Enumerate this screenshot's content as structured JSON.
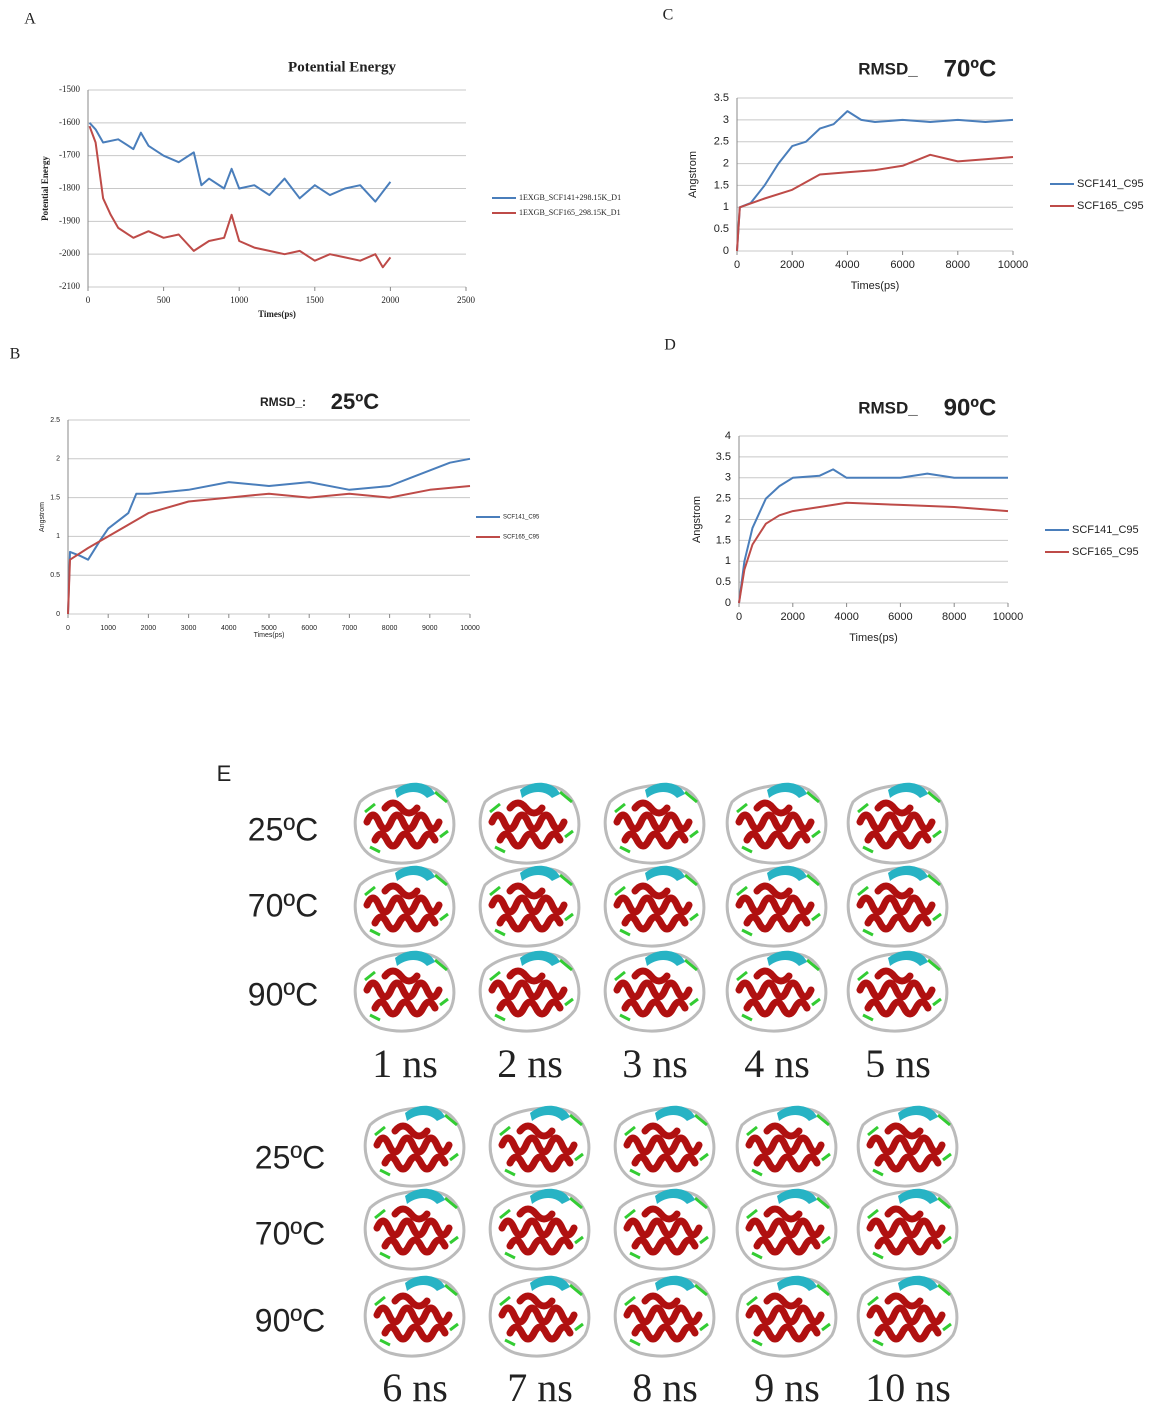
{
  "chart_data": [
    {
      "type": "line",
      "panel": "A",
      "title": "Potential Energy",
      "x_label": "Times(ps)",
      "y_label": "Potential Energy",
      "xlim": [
        0,
        2500
      ],
      "xticks": [
        0,
        500,
        1000,
        1500,
        2000,
        2500
      ],
      "ylim": [
        -2100,
        -1500
      ],
      "yticks": [
        -2100,
        -2000,
        -1900,
        -1800,
        -1700,
        -1600,
        -1500
      ],
      "grid": true,
      "series": [
        {
          "name": "1EXGB_SCF141+298.15K_D1",
          "color": "#4a7ebb",
          "x": [
            10,
            50,
            100,
            200,
            300,
            350,
            400,
            500,
            600,
            700,
            750,
            800,
            900,
            950,
            1000,
            1100,
            1200,
            1300,
            1400,
            1500,
            1600,
            1700,
            1800,
            1900,
            2000
          ],
          "values": [
            -1600,
            -1620,
            -1660,
            -1650,
            -1680,
            -1630,
            -1670,
            -1700,
            -1720,
            -1690,
            -1790,
            -1770,
            -1800,
            -1740,
            -1800,
            -1790,
            -1820,
            -1770,
            -1830,
            -1790,
            -1820,
            -1800,
            -1790,
            -1840,
            -1780
          ]
        },
        {
          "name": "1EXGB_SCF165_298.15K_D1",
          "color": "#be4b48",
          "x": [
            10,
            50,
            100,
            150,
            200,
            300,
            400,
            500,
            600,
            700,
            800,
            900,
            950,
            1000,
            1100,
            1200,
            1300,
            1400,
            1500,
            1600,
            1700,
            1800,
            1900,
            1950,
            2000
          ],
          "values": [
            -1610,
            -1660,
            -1830,
            -1880,
            -1920,
            -1950,
            -1930,
            -1950,
            -1940,
            -1990,
            -1960,
            -1950,
            -1880,
            -1960,
            -1980,
            -1990,
            -2000,
            -1990,
            -2020,
            -2000,
            -2010,
            -2020,
            -2000,
            -2040,
            -2010
          ]
        }
      ]
    },
    {
      "type": "line",
      "panel": "B",
      "title": "RMSD_:",
      "title_temp": "25ºC",
      "x_label": "Times(ps)",
      "y_label": "Angstrom",
      "xlim": [
        0,
        10000
      ],
      "xticks": [
        0,
        1000,
        2000,
        3000,
        4000,
        5000,
        6000,
        7000,
        8000,
        9000,
        10000
      ],
      "ylim": [
        0,
        2.5
      ],
      "yticks": [
        0,
        0.5,
        1,
        1.5,
        2,
        2.5
      ],
      "grid": true,
      "series": [
        {
          "name": "SCF141_C95",
          "color": "#4a7ebb",
          "x": [
            0,
            50,
            300,
            500,
            800,
            1000,
            1500,
            1700,
            2000,
            3000,
            4000,
            5000,
            6000,
            7000,
            8000,
            8500,
            9000,
            9500,
            10000
          ],
          "values": [
            0,
            0.8,
            0.75,
            0.7,
            0.95,
            1.1,
            1.3,
            1.55,
            1.55,
            1.6,
            1.7,
            1.65,
            1.7,
            1.6,
            1.65,
            1.75,
            1.85,
            1.95,
            2.0
          ]
        },
        {
          "name": "SCF165_C95",
          "color": "#be4b48",
          "x": [
            0,
            50,
            500,
            1000,
            1500,
            2000,
            3000,
            4000,
            5000,
            6000,
            7000,
            8000,
            9000,
            10000
          ],
          "values": [
            0,
            0.7,
            0.85,
            1.0,
            1.15,
            1.3,
            1.45,
            1.5,
            1.55,
            1.5,
            1.55,
            1.5,
            1.6,
            1.65
          ]
        }
      ]
    },
    {
      "type": "line",
      "panel": "C",
      "title": "RMSD_",
      "title_temp": "70ºC",
      "x_label": "Times(ps)",
      "y_label": "Angstrom",
      "xlim": [
        0,
        10000
      ],
      "xticks": [
        0,
        2000,
        4000,
        6000,
        8000,
        10000
      ],
      "ylim": [
        0,
        3.5
      ],
      "yticks": [
        0,
        0.5,
        1,
        1.5,
        2,
        2.5,
        3,
        3.5
      ],
      "grid": true,
      "series": [
        {
          "name": "SCF141_C95",
          "color": "#4a7ebb",
          "x": [
            0,
            100,
            500,
            1000,
            1500,
            2000,
            2500,
            3000,
            3500,
            4000,
            4500,
            5000,
            6000,
            7000,
            8000,
            9000,
            10000
          ],
          "values": [
            0,
            1.0,
            1.1,
            1.5,
            2.0,
            2.4,
            2.5,
            2.8,
            2.9,
            3.2,
            3.0,
            2.95,
            3.0,
            2.95,
            3.0,
            2.95,
            3.0
          ]
        },
        {
          "name": "SCF165_C95",
          "color": "#be4b48",
          "x": [
            0,
            100,
            1000,
            2000,
            3000,
            4000,
            5000,
            6000,
            7000,
            8000,
            9000,
            10000
          ],
          "values": [
            0,
            1.0,
            1.2,
            1.4,
            1.75,
            1.8,
            1.85,
            1.95,
            2.2,
            2.05,
            2.1,
            2.15
          ]
        }
      ]
    },
    {
      "type": "line",
      "panel": "D",
      "title": "RMSD_",
      "title_temp": "90ºC",
      "x_label": "Times(ps)",
      "y_label": "Angstrom",
      "xlim": [
        0,
        10000
      ],
      "xticks": [
        0,
        2000,
        4000,
        6000,
        8000,
        10000
      ],
      "ylim": [
        0,
        4
      ],
      "yticks": [
        0,
        0.5,
        1,
        1.5,
        2,
        2.5,
        3,
        3.5,
        4
      ],
      "grid": true,
      "series": [
        {
          "name": "SCF141_C95",
          "color": "#4a7ebb",
          "x": [
            0,
            200,
            500,
            1000,
            1500,
            2000,
            3000,
            3500,
            4000,
            6000,
            7000,
            8000,
            10000
          ],
          "values": [
            0,
            1.0,
            1.8,
            2.5,
            2.8,
            3.0,
            3.05,
            3.2,
            3.0,
            3.0,
            3.1,
            3.0,
            3.0
          ]
        },
        {
          "name": "SCF165_C95",
          "color": "#be4b48",
          "x": [
            0,
            200,
            500,
            1000,
            1500,
            2000,
            3000,
            4000,
            6000,
            8000,
            10000
          ],
          "values": [
            0,
            0.8,
            1.4,
            1.9,
            2.1,
            2.2,
            2.3,
            2.4,
            2.35,
            2.3,
            2.2
          ]
        }
      ]
    }
  ],
  "panel_e": {
    "label": "E",
    "groups": [
      {
        "rows": [
          "25ºC",
          "70ºC",
          "90ºC"
        ],
        "times": [
          "1 ns",
          "2 ns",
          "3 ns",
          "4 ns",
          "5 ns"
        ]
      },
      {
        "rows": [
          "25ºC",
          "70ºC",
          "90ºC"
        ],
        "times": [
          "6 ns",
          "7 ns",
          "8 ns",
          "9 ns",
          "10 ns"
        ]
      }
    ]
  }
}
